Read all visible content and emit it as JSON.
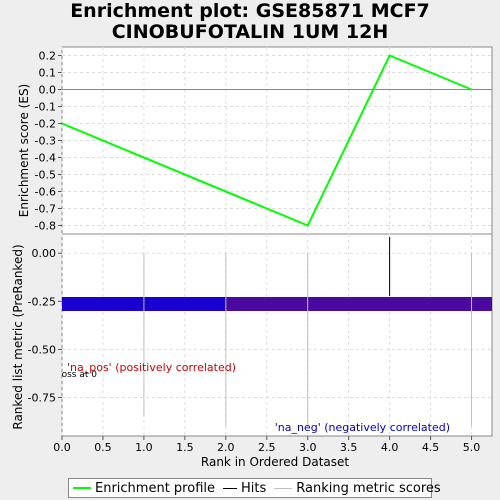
{
  "title_line1": "Enrichment plot: GSE85871 MCF7",
  "title_line2": "CINOBUFOTALIN 1UM 12H",
  "colors": {
    "profile": "#00ff00",
    "hits": "#000000",
    "ranking": "#c0c0c0",
    "bar_pos": "#1a00d0",
    "bar_neg": "#4a0aa0",
    "pos_label": "#cc0000",
    "neg_label": "#0000cc"
  },
  "chart_data": [
    {
      "type": "line",
      "name": "enrichment",
      "ylabel": "Enrichment score (ES)",
      "xlim": [
        0,
        5.25
      ],
      "ylim": [
        -0.85,
        0.25
      ],
      "yticks": [
        0.2,
        0.1,
        0.0,
        -0.1,
        -0.2,
        -0.3,
        -0.4,
        -0.5,
        -0.6,
        -0.7,
        -0.8
      ],
      "ytick_labels": [
        "0.2",
        "0.1",
        "0.0",
        "-0.1",
        "-0.2",
        "-0.3",
        "-0.4",
        "-0.5",
        "-0.6",
        "-0.7",
        "-0.8"
      ],
      "series": [
        {
          "x": [
            0,
            3,
            4,
            5
          ],
          "y": [
            -0.2,
            -0.8,
            0.2,
            0.0
          ]
        }
      ],
      "hits_x": [
        4
      ]
    },
    {
      "type": "bar",
      "name": "ranked-list",
      "xlabel": "Rank in Ordered Dataset",
      "ylabel": "Ranked list metric (PreRanked)",
      "xlim": [
        0,
        5.25
      ],
      "ylim": [
        -0.95,
        0.1
      ],
      "xticks": [
        0.0,
        0.5,
        1.0,
        1.5,
        2.0,
        2.5,
        3.0,
        3.5,
        4.0,
        4.5,
        5.0
      ],
      "xtick_labels": [
        "0.0",
        "0.5",
        "1.0",
        "1.5",
        "2.0",
        "2.5",
        "3.0",
        "3.5",
        "4.0",
        "4.5",
        "5.0"
      ],
      "yticks": [
        0.0,
        -0.25,
        -0.5,
        -0.75
      ],
      "ytick_labels": [
        "0.00",
        "-0.25",
        "-0.50",
        "-0.75"
      ],
      "ranking_x": [
        1,
        2,
        3,
        5
      ],
      "ranking_values": [
        -0.85,
        -0.9,
        -0.9,
        -0.9
      ],
      "pos_label": "'na_pos' (positively correlated)",
      "neg_label": "'na_neg' (negatively correlated)",
      "zero_cross_label": "Zero cross at 0"
    }
  ],
  "legend": {
    "profile": "Enrichment profile",
    "hits": "Hits",
    "ranking": "Ranking metric scores"
  }
}
